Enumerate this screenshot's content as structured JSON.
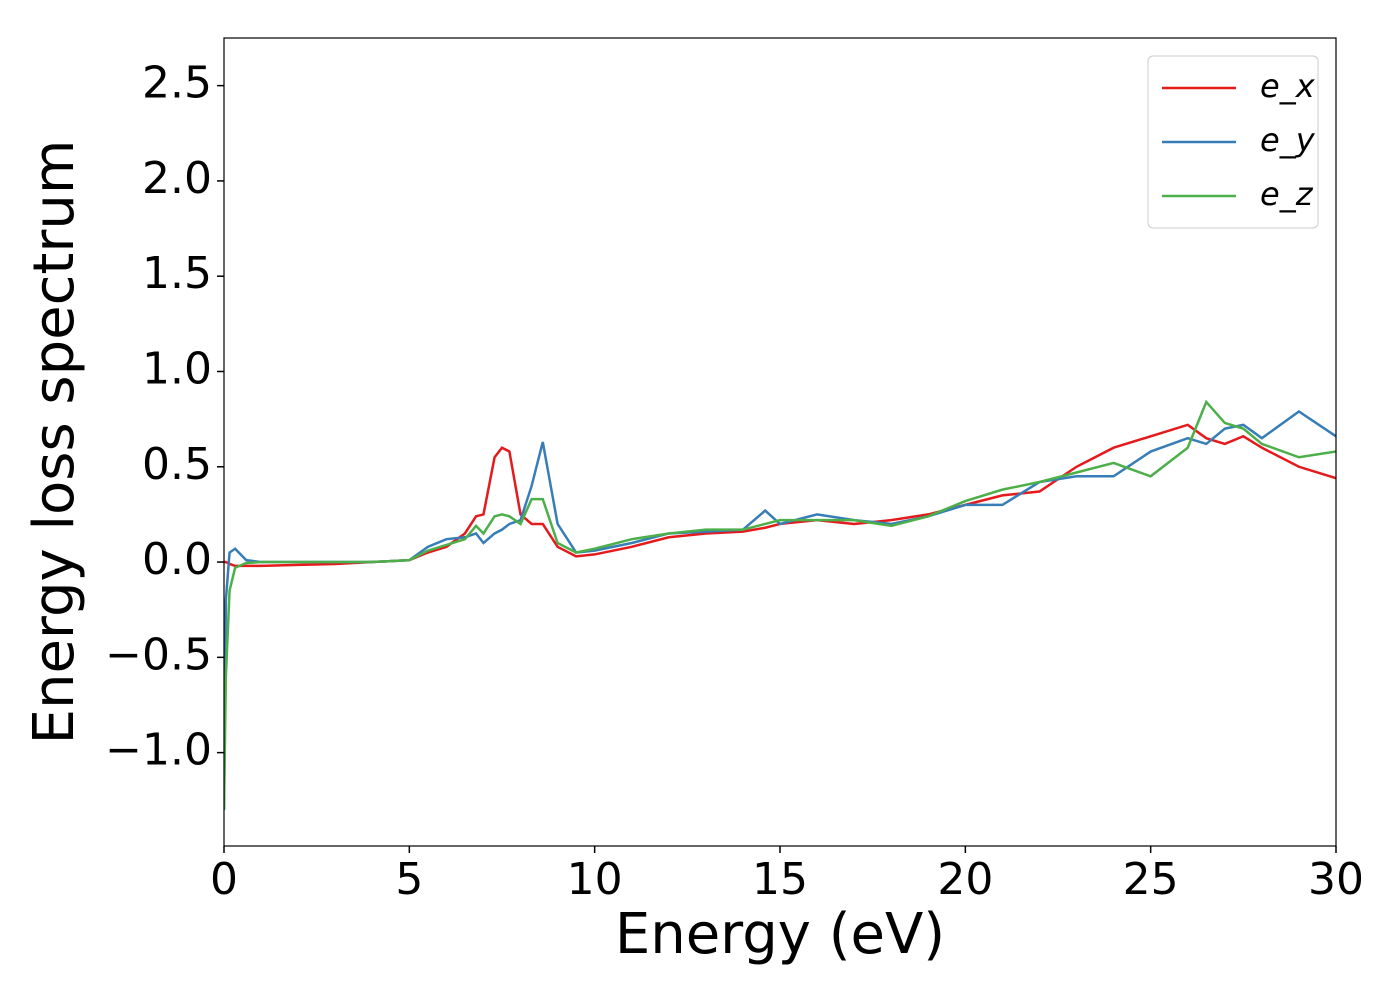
{
  "chart_data": {
    "type": "line",
    "xlabel": "Energy (eV)",
    "ylabel": "Energy loss spectrum",
    "x": [
      0,
      0.05,
      0.15,
      0.3,
      0.6,
      1,
      2,
      3,
      4,
      5,
      5.5,
      6,
      6.5,
      6.8,
      7,
      7.3,
      7.5,
      7.7,
      8,
      8.3,
      8.6,
      9,
      9.5,
      10,
      11,
      12,
      13,
      14,
      14.6,
      15,
      16,
      17,
      18,
      19,
      20,
      21,
      22,
      23,
      24,
      25,
      26,
      26.5,
      27,
      27.5,
      28,
      29,
      30
    ],
    "series": [
      {
        "name": "e_x",
        "color": "#e41a1c",
        "values": [
          0,
          0,
          -0.01,
          -0.02,
          -0.02,
          -0.02,
          -0.015,
          -0.01,
          0,
          0.01,
          0.05,
          0.08,
          0.15,
          0.24,
          0.25,
          0.55,
          0.6,
          0.58,
          0.25,
          0.2,
          0.2,
          0.08,
          0.03,
          0.04,
          0.08,
          0.13,
          0.15,
          0.16,
          0.18,
          0.2,
          0.22,
          0.2,
          0.22,
          0.25,
          0.3,
          0.35,
          0.37,
          0.5,
          0.6,
          0.66,
          0.72,
          0.65,
          0.62,
          0.66,
          0.6,
          0.5,
          0.44
        ]
      },
      {
        "name": "e_y",
        "color": "#377eb8",
        "values": [
          -1.3,
          -0.2,
          0.05,
          0.07,
          0.01,
          0,
          0,
          0,
          0,
          0.01,
          0.08,
          0.12,
          0.13,
          0.15,
          0.1,
          0.15,
          0.17,
          0.2,
          0.22,
          0.4,
          0.63,
          0.2,
          0.05,
          0.06,
          0.1,
          0.15,
          0.16,
          0.17,
          0.27,
          0.2,
          0.25,
          0.22,
          0.2,
          0.24,
          0.3,
          0.3,
          0.42,
          0.45,
          0.45,
          0.58,
          0.65,
          0.62,
          0.7,
          0.72,
          0.65,
          0.79,
          0.66
        ]
      },
      {
        "name": "e_z",
        "color": "#4daf4a",
        "values": [
          -1.3,
          -0.6,
          -0.15,
          -0.03,
          -0.005,
          0,
          0,
          0,
          0,
          0.01,
          0.06,
          0.09,
          0.12,
          0.19,
          0.15,
          0.24,
          0.25,
          0.24,
          0.2,
          0.33,
          0.33,
          0.1,
          0.05,
          0.07,
          0.12,
          0.15,
          0.17,
          0.17,
          0.2,
          0.22,
          0.22,
          0.22,
          0.19,
          0.24,
          0.32,
          0.38,
          0.42,
          0.47,
          0.52,
          0.45,
          0.6,
          0.84,
          0.73,
          0.7,
          0.62,
          0.55,
          0.58
        ]
      }
    ],
    "xlim": [
      0,
      30
    ],
    "xticks": [
      0,
      5,
      10,
      15,
      20,
      25,
      30
    ],
    "ylim": [
      -1.49,
      2.75
    ],
    "yticks": [
      {
        "value": -1.0,
        "label": "−1.0"
      },
      {
        "value": -0.5,
        "label": "−0.5"
      },
      {
        "value": 0,
        "label": "0.0"
      },
      {
        "value": 0.5,
        "label": "0.5"
      },
      {
        "value": 1.0,
        "label": "1.0"
      },
      {
        "value": 1.5,
        "label": "1.5"
      },
      {
        "value": 2.0,
        "label": "2.0"
      },
      {
        "value": 2.5,
        "label": "2.5"
      }
    ],
    "legend": "upper right",
    "grid": false
  }
}
